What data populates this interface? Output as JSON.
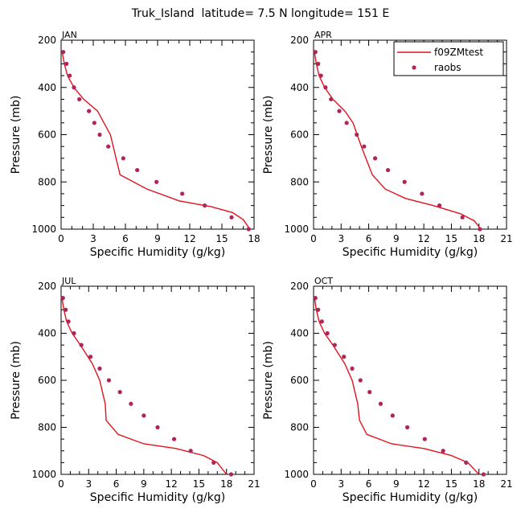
{
  "title": "Truk_Island  latitude= 7.5 N longitude= 151 E",
  "colors": {
    "model": "#e0141e",
    "obs": "#b0245a"
  },
  "legend": {
    "model_label": "f09ZMtest",
    "obs_label": "raobs"
  },
  "chart_data": [
    {
      "type": "line",
      "panel": "JAN",
      "xlabel": "Specific Humidity (g/kg)",
      "ylabel": "Pressure (mb)",
      "xlim": [
        0,
        18
      ],
      "xticks": [
        0,
        3,
        6,
        9,
        12,
        15,
        18
      ],
      "ylim": [
        200,
        1000
      ],
      "yticks": [
        200,
        400,
        600,
        800,
        1000
      ],
      "series": [
        {
          "name": "f09ZMtest",
          "style": "line",
          "x": [
            0.1,
            0.3,
            0.6,
            1.2,
            2.1,
            3.4,
            4.6,
            5.5,
            8.0,
            11.0,
            14.0,
            16.0,
            17.0,
            17.6
          ],
          "y": [
            250,
            300,
            350,
            400,
            450,
            500,
            600,
            770,
            830,
            880,
            905,
            930,
            960,
            1000
          ]
        },
        {
          "name": "raobs",
          "style": "markers",
          "x": [
            0.2,
            0.5,
            0.8,
            1.2,
            1.7,
            2.6,
            3.1,
            3.6,
            4.4,
            5.8,
            7.1,
            8.9,
            11.3,
            13.4,
            15.9,
            17.5
          ],
          "y": [
            250,
            300,
            350,
            400,
            450,
            500,
            550,
            600,
            650,
            700,
            750,
            800,
            850,
            900,
            950,
            1000
          ]
        }
      ]
    },
    {
      "type": "line",
      "panel": "APR",
      "xlabel": "Specific Humidity (g/kg)",
      "ylabel": "Pressure (mb)",
      "xlim": [
        0,
        21
      ],
      "xticks": [
        0,
        3,
        6,
        9,
        12,
        15,
        18,
        21
      ],
      "ylim": [
        200,
        1000
      ],
      "yticks": [
        200,
        400,
        600,
        800,
        1000
      ],
      "series": [
        {
          "name": "f09ZMtest",
          "style": "line",
          "x": [
            0.1,
            0.3,
            0.6,
            1.2,
            2.1,
            3.4,
            4.3,
            5.2,
            6.4,
            7.8,
            10.0,
            13.0,
            16.0,
            17.5,
            18.2
          ],
          "y": [
            250,
            300,
            350,
            400,
            450,
            500,
            550,
            650,
            770,
            830,
            870,
            900,
            935,
            965,
            1000
          ]
        },
        {
          "name": "raobs",
          "style": "markers",
          "x": [
            0.2,
            0.5,
            0.8,
            1.3,
            1.9,
            2.8,
            3.6,
            4.7,
            5.5,
            6.7,
            8.1,
            9.9,
            11.8,
            13.7,
            16.2,
            18.1
          ],
          "y": [
            250,
            300,
            350,
            400,
            450,
            500,
            550,
            600,
            650,
            700,
            750,
            800,
            850,
            900,
            950,
            1000
          ]
        }
      ]
    },
    {
      "type": "line",
      "panel": "JUL",
      "xlabel": "Specific Humidity (g/kg)",
      "ylabel": "Pressure (mb)",
      "xlim": [
        0,
        21
      ],
      "xticks": [
        0,
        3,
        6,
        9,
        12,
        15,
        18,
        21
      ],
      "ylim": [
        200,
        1000
      ],
      "yticks": [
        200,
        400,
        600,
        800,
        1000
      ],
      "series": [
        {
          "name": "f09ZMtest",
          "style": "line",
          "x": [
            0.1,
            0.3,
            0.6,
            1.2,
            2.1,
            3.4,
            4.2,
            4.8,
            4.9,
            6.2,
            9.0,
            12.5,
            15.5,
            17.0,
            18.0
          ],
          "y": [
            250,
            300,
            350,
            400,
            450,
            530,
            600,
            700,
            770,
            830,
            870,
            890,
            920,
            950,
            1000
          ]
        },
        {
          "name": "raobs",
          "style": "markers",
          "x": [
            0.2,
            0.5,
            0.8,
            1.4,
            2.2,
            3.2,
            4.2,
            5.2,
            6.4,
            7.6,
            9.0,
            10.5,
            12.3,
            14.1,
            16.6,
            18.5
          ],
          "y": [
            250,
            300,
            350,
            400,
            450,
            500,
            550,
            600,
            650,
            700,
            750,
            800,
            850,
            900,
            950,
            1000
          ]
        }
      ]
    },
    {
      "type": "line",
      "panel": "OCT",
      "xlabel": "Specific Humidity (g/kg)",
      "ylabel": "Pressure (mb)",
      "xlim": [
        0,
        21
      ],
      "xticks": [
        0,
        3,
        6,
        9,
        12,
        15,
        18,
        21
      ],
      "ylim": [
        200,
        1000
      ],
      "yticks": [
        200,
        400,
        600,
        800,
        1000
      ],
      "series": [
        {
          "name": "f09ZMtest",
          "style": "line",
          "x": [
            0.1,
            0.3,
            0.6,
            1.2,
            2.1,
            3.4,
            4.2,
            4.8,
            5.0,
            5.8,
            8.5,
            12.0,
            15.0,
            16.8,
            18.0
          ],
          "y": [
            250,
            300,
            350,
            400,
            450,
            530,
            600,
            700,
            770,
            830,
            870,
            890,
            920,
            950,
            1000
          ]
        },
        {
          "name": "raobs",
          "style": "markers",
          "x": [
            0.2,
            0.5,
            0.9,
            1.5,
            2.3,
            3.3,
            4.2,
            5.1,
            6.1,
            7.3,
            8.6,
            10.2,
            12.1,
            14.1,
            16.6,
            18.5
          ],
          "y": [
            250,
            300,
            350,
            400,
            450,
            500,
            550,
            600,
            650,
            700,
            750,
            800,
            850,
            900,
            950,
            1000
          ]
        }
      ]
    }
  ]
}
